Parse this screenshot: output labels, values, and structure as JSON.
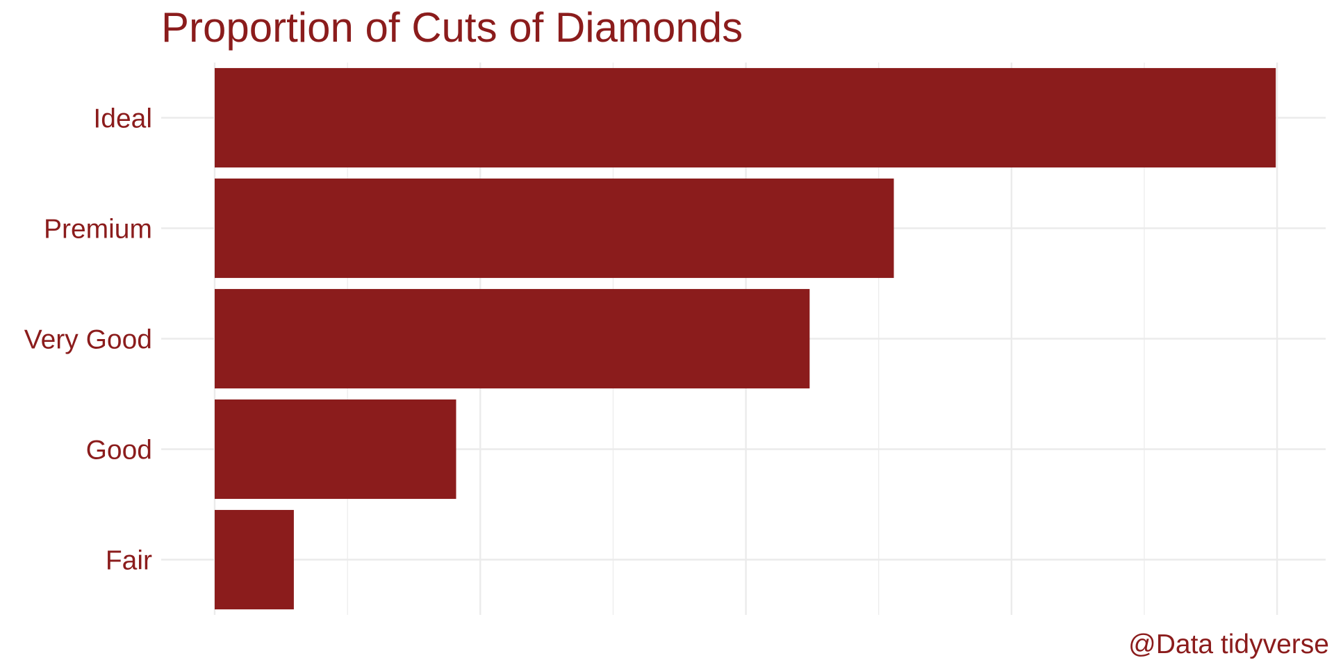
{
  "chart_data": {
    "type": "bar",
    "orientation": "horizontal",
    "title": "Proportion of Cuts of Diamonds",
    "caption": "@Data tidyverse",
    "categories": [
      "Ideal",
      "Premium",
      "Very Good",
      "Good",
      "Fair"
    ],
    "values": [
      0.3995,
      0.2557,
      0.224,
      0.0909,
      0.0298
    ],
    "xlim": [
      0,
      0.4175
    ],
    "x_major_breaks": [
      0,
      0.1,
      0.2,
      0.3,
      0.4
    ],
    "x_minor_breaks": [
      0.05,
      0.15,
      0.25,
      0.35
    ],
    "x_tick_labels_shown": false,
    "xlabel": "",
    "ylabel": "",
    "grid": true,
    "legend": "none"
  },
  "colors": {
    "bar": "#8B1C1C",
    "text": "#8B1C1C",
    "grid": "#EBEBEB",
    "background": "#FFFFFF"
  }
}
